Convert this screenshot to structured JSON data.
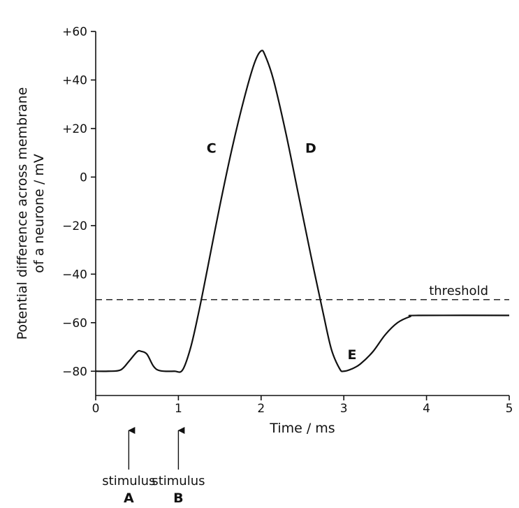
{
  "chart_data": {
    "type": "line",
    "xlabel": "Time / ms",
    "ylabel_lines": [
      "Potential difference across membrane",
      "of a neurone / mV"
    ],
    "xlim": [
      0,
      5
    ],
    "ylim": [
      -90,
      60
    ],
    "x_ticks": [
      0,
      1,
      2,
      3,
      4,
      5
    ],
    "x_tick_labels": [
      "0",
      "1",
      "2",
      "3",
      "4",
      "5"
    ],
    "y_ticks": [
      60,
      40,
      20,
      0,
      -20,
      -40,
      -60,
      -80
    ],
    "y_tick_labels": [
      "+60",
      "+40",
      "+20",
      "0",
      "−20",
      "−40",
      "−60",
      "−80"
    ],
    "grid": false,
    "series": [
      {
        "name": "",
        "points": [
          [
            0,
            -80
          ],
          [
            0.15,
            -80
          ],
          [
            0.3,
            -79.5
          ],
          [
            0.4,
            -76
          ],
          [
            0.5,
            -72
          ],
          [
            0.55,
            -71.8
          ],
          [
            0.62,
            -73
          ],
          [
            0.7,
            -78
          ],
          [
            0.78,
            -79.8
          ],
          [
            0.95,
            -80
          ],
          [
            1.05,
            -79.5
          ],
          [
            1.15,
            -70
          ],
          [
            1.25,
            -55
          ],
          [
            1.35,
            -38
          ],
          [
            1.5,
            -12
          ],
          [
            1.65,
            12
          ],
          [
            1.8,
            33
          ],
          [
            1.92,
            47
          ],
          [
            2.0,
            52
          ],
          [
            2.05,
            50
          ],
          [
            2.15,
            40
          ],
          [
            2.3,
            18
          ],
          [
            2.45,
            -7
          ],
          [
            2.6,
            -32
          ],
          [
            2.75,
            -56
          ],
          [
            2.85,
            -71
          ],
          [
            2.95,
            -79
          ],
          [
            3.0,
            -80
          ],
          [
            3.1,
            -79
          ],
          [
            3.2,
            -77
          ],
          [
            3.35,
            -72
          ],
          [
            3.5,
            -65
          ],
          [
            3.65,
            -60
          ],
          [
            3.8,
            -57.5
          ],
          [
            3.9,
            -57
          ],
          [
            5.0,
            -57
          ]
        ]
      }
    ],
    "threshold": {
      "label": "threshold",
      "y": -50.5
    },
    "letters": [
      {
        "text": "C",
        "x": 1.4,
        "y": 10
      },
      {
        "text": "D",
        "x": 2.6,
        "y": 10
      },
      {
        "text": "E",
        "x": 3.1,
        "y": -75
      }
    ],
    "stimuli": [
      {
        "label": "stimulus",
        "letter": "A",
        "x": 0.4
      },
      {
        "label": "stimulus",
        "letter": "B",
        "x": 1.0
      }
    ]
  }
}
